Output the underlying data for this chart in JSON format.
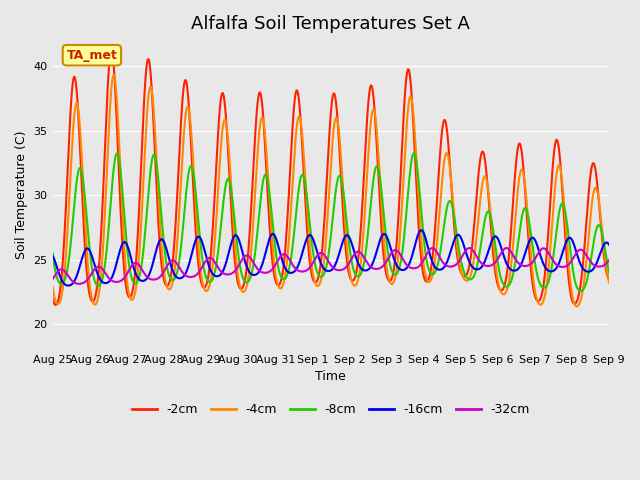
{
  "title": "Alfalfa Soil Temperatures Set A",
  "xlabel": "Time",
  "ylabel": "Soil Temperature (C)",
  "ylim": [
    18,
    42
  ],
  "bg_color": "#e8e8e8",
  "plot_bg": "#e8e8e8",
  "annotation_text": "TA_met",
  "annotation_color": "#cc2200",
  "annotation_bg": "#ffff99",
  "annotation_border": "#cc8800",
  "series_colors": [
    "#ff2200",
    "#ff8800",
    "#22cc00",
    "#0000ee",
    "#cc00cc"
  ],
  "series_labels": [
    "-2cm",
    "-4cm",
    "-8cm",
    "-16cm",
    "-32cm"
  ],
  "line_width": 1.5,
  "xtick_labels": [
    "Aug 25",
    "Aug 26",
    "Aug 27",
    "Aug 28",
    "Aug 29",
    "Aug 30",
    "Aug 31",
    "Sep 1",
    "Sep 2",
    "Sep 3",
    "Sep 4",
    "Sep 5",
    "Sep 6",
    "Sep 7",
    "Sep 8",
    "Sep 9"
  ],
  "legend_loc": "lower center",
  "title_fontsize": 13
}
